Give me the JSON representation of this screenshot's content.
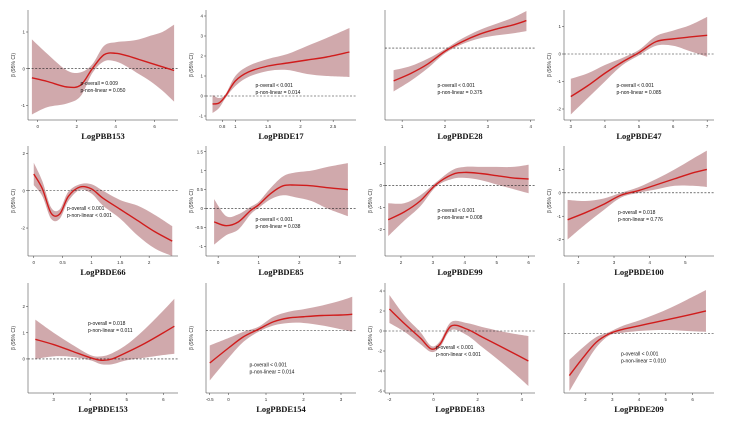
{
  "colors": {
    "curve": "#d01c1c",
    "band": "#c89a9e",
    "axis": "#333333",
    "reference_line": "#222222"
  },
  "chart_data": [
    {
      "type": "line",
      "xlabel": "LogPBB153",
      "ylabel": "β (95% CI)",
      "xlim": [
        -0.5,
        7.2
      ],
      "ylim": [
        -1.4,
        1.6
      ],
      "xticks": [
        0,
        2,
        4,
        6
      ],
      "yticks": [
        -1,
        0,
        1
      ],
      "reference_y": 0,
      "annotation": [
        "p-overall = 0.009",
        "p-non-linear = 0.050"
      ],
      "x": [
        -0.3,
        0.5,
        1.5,
        2.2,
        2.8,
        3.4,
        4.0,
        4.6,
        5.2,
        5.8,
        6.4,
        7.0
      ],
      "y": [
        -0.25,
        -0.35,
        -0.5,
        -0.45,
        0.0,
        0.38,
        0.42,
        0.35,
        0.25,
        0.15,
        0.05,
        -0.05
      ],
      "lower": [
        -1.25,
        -1.05,
        -0.95,
        -0.75,
        -0.12,
        0.2,
        0.2,
        0.05,
        -0.15,
        -0.35,
        -0.6,
        -0.9
      ],
      "upper": [
        0.8,
        0.4,
        -0.05,
        -0.1,
        0.12,
        0.62,
        0.72,
        0.75,
        0.8,
        0.9,
        1.0,
        1.2
      ]
    },
    {
      "type": "line",
      "xlabel": "LogPBDE17",
      "ylabel": "β (95% CI)",
      "xlim": [
        0.55,
        2.85
      ],
      "ylim": [
        -1.2,
        4.3
      ],
      "xticks": [
        0.8,
        1.0,
        1.5,
        2.0,
        2.5
      ],
      "yticks": [
        -1,
        0,
        1,
        2,
        3,
        4
      ],
      "reference_y": 0,
      "annotation": [
        "p-overall < 0.001",
        "p-non-linear = 0.014"
      ],
      "x": [
        0.65,
        0.75,
        0.85,
        1.0,
        1.2,
        1.5,
        1.8,
        2.1,
        2.4,
        2.75
      ],
      "y": [
        -0.4,
        -0.35,
        0.0,
        0.75,
        1.2,
        1.5,
        1.65,
        1.8,
        1.95,
        2.2
      ],
      "lower": [
        -0.85,
        -0.6,
        -0.1,
        0.5,
        0.95,
        1.25,
        1.3,
        1.1,
        1.0,
        0.95
      ],
      "upper": [
        0.05,
        -0.1,
        0.1,
        1.0,
        1.5,
        1.85,
        2.1,
        2.5,
        2.9,
        3.4
      ]
    },
    {
      "type": "line",
      "xlabel": "LogPBDE28",
      "ylabel": "",
      "xlim": [
        0.6,
        4.1
      ],
      "ylim": [
        -3.4,
        1.8
      ],
      "xticks": [
        1,
        2,
        3,
        4
      ],
      "yticks": [],
      "reference_y": 0,
      "annotation": [
        "p-overall < 0.001",
        "p-non-linear = 0.375"
      ],
      "x": [
        0.8,
        1.2,
        1.6,
        2.0,
        2.4,
        2.8,
        3.2,
        3.6,
        3.9
      ],
      "y": [
        -1.55,
        -1.2,
        -0.75,
        -0.15,
        0.3,
        0.65,
        0.9,
        1.1,
        1.3
      ],
      "lower": [
        -2.05,
        -1.55,
        -0.95,
        -0.25,
        0.18,
        0.45,
        0.6,
        0.7,
        0.8
      ],
      "upper": [
        -1.05,
        -0.85,
        -0.5,
        -0.05,
        0.45,
        0.85,
        1.15,
        1.45,
        1.75
      ]
    },
    {
      "type": "line",
      "xlabel": "LogPBDE47",
      "ylabel": "β (95% CI)",
      "xlim": [
        2.8,
        7.2
      ],
      "ylim": [
        -2.4,
        1.6
      ],
      "xticks": [
        3,
        4,
        5,
        6,
        7
      ],
      "yticks": [
        -2,
        -1,
        0,
        1
      ],
      "reference_y": 0,
      "annotation": [
        "p-overall < 0.001",
        "p-non-linear = 0.085"
      ],
      "x": [
        3.0,
        3.5,
        4.0,
        4.5,
        5.0,
        5.5,
        6.0,
        6.5,
        7.0
      ],
      "y": [
        -1.55,
        -1.15,
        -0.7,
        -0.3,
        0.05,
        0.45,
        0.55,
        0.62,
        0.68
      ],
      "lower": [
        -2.2,
        -1.6,
        -1.0,
        -0.42,
        -0.05,
        0.3,
        0.3,
        0.1,
        -0.1
      ],
      "upper": [
        -0.9,
        -0.7,
        -0.4,
        -0.15,
        0.15,
        0.65,
        0.85,
        1.05,
        1.35
      ]
    },
    {
      "type": "line",
      "xlabel": "LogPBDE66",
      "ylabel": "β (95% CI)",
      "xlim": [
        -0.1,
        2.5
      ],
      "ylim": [
        -3.5,
        2.4
      ],
      "xticks": [
        0.0,
        0.5,
        1.0,
        1.5,
        2.0
      ],
      "yticks": [
        -2,
        0,
        2
      ],
      "reference_y": 0,
      "annotation": [
        "p-overall < 0.001",
        "p-non-linear < 0.001"
      ],
      "x": [
        0.0,
        0.15,
        0.3,
        0.45,
        0.6,
        0.8,
        1.0,
        1.2,
        1.5,
        1.8,
        2.1,
        2.4
      ],
      "y": [
        0.9,
        0.1,
        -1.2,
        -1.25,
        -0.3,
        0.2,
        0.1,
        -0.4,
        -1.0,
        -1.6,
        -2.2,
        -2.7
      ],
      "lower": [
        0.3,
        -0.3,
        -1.5,
        -1.5,
        -0.55,
        0.05,
        -0.15,
        -0.8,
        -1.5,
        -2.4,
        -3.1,
        -3.5
      ],
      "upper": [
        1.5,
        0.5,
        -0.9,
        -1.0,
        -0.05,
        0.35,
        0.35,
        0.0,
        -0.5,
        -0.8,
        -1.3,
        -1.9
      ]
    },
    {
      "type": "line",
      "xlabel": "LogPBDE85",
      "ylabel": "β (95% CI)",
      "xlim": [
        -0.3,
        3.4
      ],
      "ylim": [
        -1.25,
        1.65
      ],
      "xticks": [
        0,
        1,
        2,
        3
      ],
      "yticks": [
        -1.0,
        -0.5,
        0.0,
        0.5,
        1.0,
        1.5
      ],
      "reference_y": 0,
      "annotation": [
        "p-overall < 0.001",
        "p-non-linear = 0.038"
      ],
      "x": [
        -0.1,
        0.2,
        0.5,
        0.8,
        1.0,
        1.3,
        1.6,
        1.9,
        2.3,
        2.7,
        3.2
      ],
      "y": [
        -0.35,
        -0.45,
        -0.35,
        -0.05,
        0.1,
        0.4,
        0.6,
        0.62,
        0.6,
        0.55,
        0.5
      ],
      "lower": [
        -0.95,
        -0.7,
        -0.55,
        -0.15,
        0.02,
        0.25,
        0.35,
        0.3,
        0.2,
        0.0,
        -0.2
      ],
      "upper": [
        0.25,
        -0.2,
        -0.15,
        0.05,
        0.18,
        0.55,
        0.85,
        0.95,
        1.0,
        1.1,
        1.2
      ]
    },
    {
      "type": "line",
      "xlabel": "LogPBDE99",
      "ylabel": "β (95% CI)",
      "xlim": [
        1.5,
        6.2
      ],
      "ylim": [
        -3.2,
        1.8
      ],
      "xticks": [
        2,
        3,
        4,
        5,
        6
      ],
      "yticks": [
        -2,
        -1,
        0,
        1
      ],
      "reference_y": 0,
      "annotation": [
        "p-overall < 0.001",
        "p-non-linear = 0.008"
      ],
      "x": [
        1.6,
        2.1,
        2.6,
        3.1,
        3.6,
        4.0,
        4.5,
        5.0,
        5.5,
        6.0
      ],
      "y": [
        -1.55,
        -1.2,
        -0.7,
        0.05,
        0.5,
        0.6,
        0.55,
        0.45,
        0.35,
        0.3
      ],
      "lower": [
        -2.3,
        -1.6,
        -0.95,
        -0.05,
        0.3,
        0.35,
        0.25,
        0.05,
        -0.15,
        -0.35
      ],
      "upper": [
        -0.8,
        -0.8,
        -0.45,
        0.15,
        0.7,
        0.85,
        0.85,
        0.85,
        0.85,
        0.95
      ]
    },
    {
      "type": "line",
      "xlabel": "LogPBDE100",
      "ylabel": "β (95% CI)",
      "xlim": [
        1.6,
        5.8
      ],
      "ylim": [
        -2.7,
        2.0
      ],
      "xticks": [
        2,
        3,
        4,
        5
      ],
      "yticks": [
        -2,
        -1,
        0,
        1
      ],
      "reference_y": 0,
      "annotation": [
        "p-overall = 0.018",
        "p-non-linear = 0.776"
      ],
      "x": [
        1.7,
        2.2,
        2.7,
        3.2,
        3.7,
        4.2,
        4.7,
        5.2,
        5.6
      ],
      "y": [
        -1.15,
        -0.85,
        -0.5,
        -0.1,
        0.1,
        0.35,
        0.6,
        0.85,
        1.0
      ],
      "lower": [
        -2.0,
        -1.35,
        -0.75,
        -0.2,
        0.0,
        0.15,
        0.3,
        0.3,
        0.25
      ],
      "upper": [
        -0.3,
        -0.35,
        -0.25,
        0.0,
        0.25,
        0.6,
        1.0,
        1.45,
        1.8
      ]
    },
    {
      "type": "line",
      "xlabel": "LogPBDE153",
      "ylabel": "β (95% CI)",
      "xlim": [
        2.3,
        6.4
      ],
      "ylim": [
        -1.3,
        2.9
      ],
      "xticks": [
        3,
        4,
        5,
        6
      ],
      "yticks": [
        0,
        1,
        2
      ],
      "reference_y": 0,
      "annotation": [
        "p-overall = 0.018",
        "p-non-linear = 0.011"
      ],
      "x": [
        2.5,
        3.0,
        3.5,
        4.0,
        4.3,
        4.6,
        5.0,
        5.5,
        6.0,
        6.3
      ],
      "y": [
        0.75,
        0.55,
        0.3,
        0.05,
        -0.05,
        0.0,
        0.25,
        0.6,
        1.0,
        1.25
      ],
      "lower": [
        0.0,
        0.1,
        0.08,
        -0.05,
        -0.2,
        -0.2,
        -0.05,
        0.05,
        0.15,
        0.2
      ],
      "upper": [
        1.5,
        1.0,
        0.55,
        0.15,
        0.1,
        0.22,
        0.55,
        1.15,
        1.85,
        2.3
      ]
    },
    {
      "type": "line",
      "xlabel": "LogPBDE154",
      "ylabel": "β (95% CI)",
      "xlim": [
        -0.6,
        3.4
      ],
      "ylim": [
        -2.5,
        1.9
      ],
      "xticks": [
        -0.5,
        0,
        1,
        2,
        3
      ],
      "yticks": [],
      "reference_y": 0,
      "annotation": [
        "p-overall < 0.001",
        "p-non-linear = 0.014"
      ],
      "x": [
        -0.5,
        0.0,
        0.4,
        0.8,
        1.2,
        1.6,
        2.0,
        2.5,
        3.0,
        3.3
      ],
      "y": [
        -1.3,
        -0.7,
        -0.25,
        0.05,
        0.35,
        0.5,
        0.55,
        0.6,
        0.62,
        0.65
      ],
      "lower": [
        -2.0,
        -1.1,
        -0.45,
        -0.05,
        0.2,
        0.3,
        0.3,
        0.2,
        0.05,
        -0.05
      ],
      "upper": [
        -0.6,
        -0.3,
        -0.05,
        0.15,
        0.55,
        0.75,
        0.85,
        1.0,
        1.2,
        1.35
      ]
    },
    {
      "type": "line",
      "xlabel": "LogPBDE183",
      "ylabel": "β (95% CI)",
      "xlim": [
        -2.2,
        4.6
      ],
      "ylim": [
        -6.2,
        4.8
      ],
      "xticks": [
        -2,
        0,
        2,
        4
      ],
      "yticks": [
        -6,
        -4,
        -2,
        0,
        2,
        4
      ],
      "reference_y": 0,
      "annotation": [
        "p-overall < 0.001",
        "p-non-linear < 0.001"
      ],
      "x": [
        -2.0,
        -1.3,
        -0.6,
        -0.1,
        0.3,
        0.8,
        1.5,
        2.2,
        3.0,
        3.7,
        4.3
      ],
      "y": [
        2.2,
        0.7,
        -0.7,
        -1.8,
        -1.3,
        0.5,
        0.2,
        -0.6,
        -1.5,
        -2.3,
        -3.0
      ],
      "lower": [
        0.8,
        -0.1,
        -1.3,
        -2.1,
        -1.6,
        0.1,
        -0.4,
        -1.6,
        -3.0,
        -4.3,
        -5.5
      ],
      "upper": [
        3.6,
        1.5,
        -0.1,
        -1.5,
        -1.0,
        0.9,
        0.8,
        0.4,
        0.0,
        -0.3,
        -0.5
      ]
    },
    {
      "type": "line",
      "xlabel": "LogPBDE209",
      "ylabel": "",
      "xlim": [
        1.2,
        6.8
      ],
      "ylim": [
        -3.4,
        2.9
      ],
      "xticks": [
        2,
        3,
        4,
        5,
        6
      ],
      "yticks": [],
      "reference_y": 0,
      "annotation": [
        "p-overall < 0.001",
        "p-non-linear = 0.010"
      ],
      "x": [
        1.4,
        1.9,
        2.4,
        2.9,
        3.4,
        4.0,
        4.6,
        5.2,
        5.8,
        6.5
      ],
      "y": [
        -2.4,
        -1.4,
        -0.5,
        0.0,
        0.25,
        0.45,
        0.65,
        0.85,
        1.05,
        1.3
      ],
      "lower": [
        -3.3,
        -2.0,
        -0.8,
        -0.1,
        0.05,
        0.15,
        0.2,
        0.2,
        0.15,
        0.1
      ],
      "upper": [
        -1.5,
        -0.8,
        -0.2,
        0.1,
        0.45,
        0.75,
        1.1,
        1.5,
        1.95,
        2.5
      ]
    }
  ]
}
